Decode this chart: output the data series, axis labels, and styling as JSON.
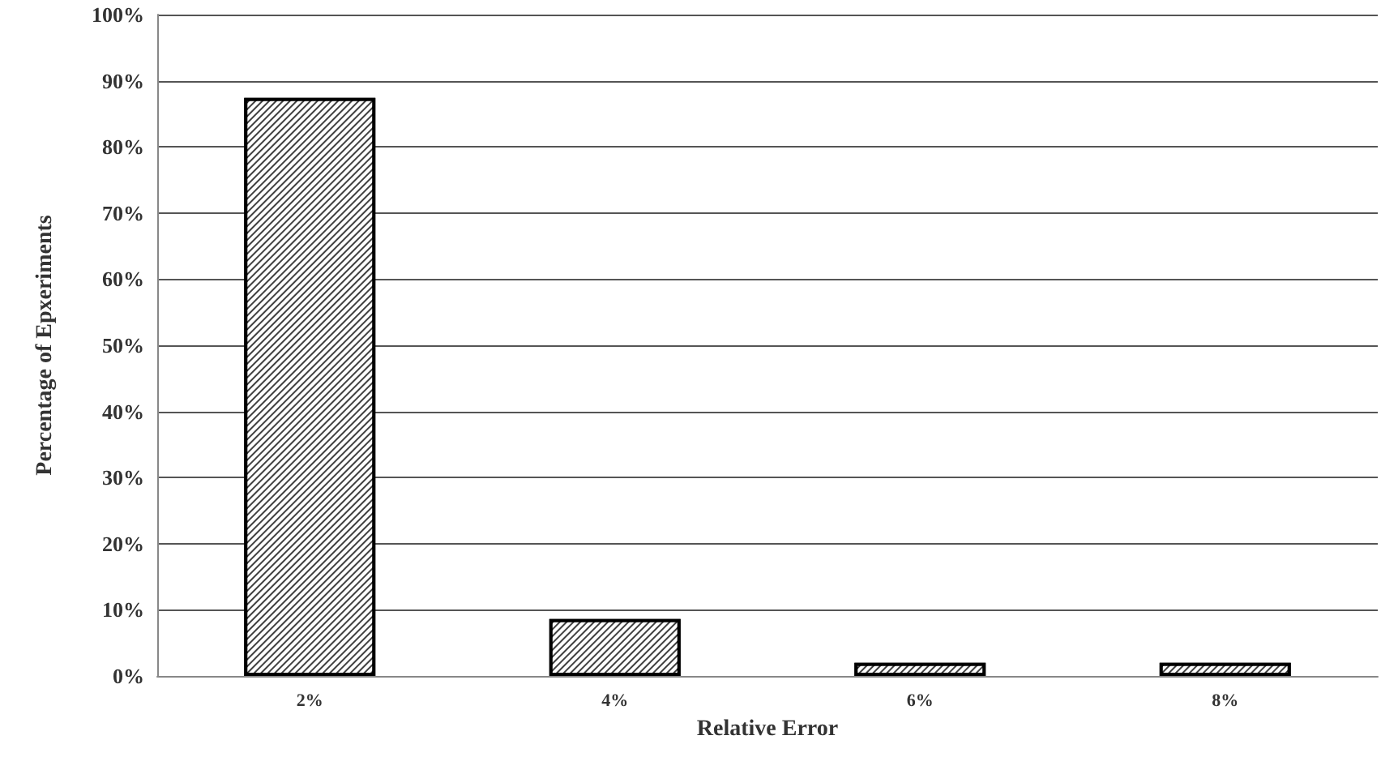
{
  "chart_data": {
    "type": "bar",
    "xlabel": "Relative Error",
    "ylabel": "Percentage of Epxeriments",
    "categories": [
      "2%",
      "4%",
      "6%",
      "8%"
    ],
    "values": [
      87.4,
      8.6,
      2,
      2
    ],
    "color": "#404040",
    "ylim": [
      0,
      100
    ],
    "yticks": [
      {
        "value": 0,
        "label": "0%"
      },
      {
        "value": 10,
        "label": "10%"
      },
      {
        "value": 20,
        "label": "20%"
      },
      {
        "value": 30,
        "label": "30%"
      },
      {
        "value": 40,
        "label": "40%"
      },
      {
        "value": 50,
        "label": "50%"
      },
      {
        "value": 60,
        "label": "60%"
      },
      {
        "value": 70,
        "label": "70%"
      },
      {
        "value": 80,
        "label": "80%"
      },
      {
        "value": 90,
        "label": "90%"
      },
      {
        "value": 100,
        "label": "100%"
      }
    ],
    "grid": "y"
  }
}
